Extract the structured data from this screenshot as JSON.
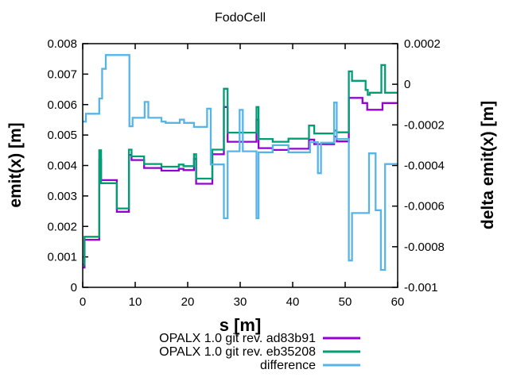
{
  "window": {
    "background": "#ffffff"
  },
  "chart_data": {
    "type": "line",
    "line_mode": "steps",
    "title": "FodoCell",
    "xlabel": "s [m]",
    "ylabel_left": "emit(x) [m]",
    "ylabel_right": "delta emit(x) [m]",
    "grid": false,
    "legend_position": "below-plot-right",
    "x_range": [
      0,
      60
    ],
    "x_ticks": [
      0,
      10,
      20,
      30,
      40,
      50,
      60
    ],
    "x_tick_labels": [
      "0",
      "10",
      "20",
      "30",
      "40",
      "50",
      "60"
    ],
    "y_left_range": [
      0,
      0.008
    ],
    "y_left_ticks": [
      0,
      0.001,
      0.002,
      0.003,
      0.004,
      0.005,
      0.006,
      0.007,
      0.008
    ],
    "y_left_tick_labels": [
      "0",
      "0.001",
      "0.002",
      "0.003",
      "0.004",
      "0.005",
      "0.006",
      "0.007",
      "0.008"
    ],
    "y_right_range": [
      -0.001,
      0.0002
    ],
    "y_right_ticks": [
      0.0002,
      0,
      -0.0002,
      -0.0004,
      -0.0006,
      -0.0008,
      -0.001
    ],
    "y_right_tick_labels": [
      "0.0002",
      "0",
      "-0.0002",
      "-0.0004",
      "-0.0006",
      "-0.0008",
      "-0.001"
    ],
    "series": [
      {
        "name": "OPALX 1.0 git rev. ad83b91",
        "color": "#9400d3",
        "axis": "left",
        "points": [
          [
            0,
            0.00065
          ],
          [
            0.35,
            0.00156
          ],
          [
            3.15,
            0.0042
          ],
          [
            3.5,
            0.00352
          ],
          [
            6.5,
            0.00248
          ],
          [
            8.8,
            0.00435
          ],
          [
            9.3,
            0.00418
          ],
          [
            11.7,
            0.00392
          ],
          [
            15.0,
            0.00383
          ],
          [
            18.3,
            0.00389
          ],
          [
            19.2,
            0.00385
          ],
          [
            21.2,
            0.00422
          ],
          [
            21.6,
            0.0034
          ],
          [
            24.7,
            0.00437
          ],
          [
            26.9,
            0.00592
          ],
          [
            27.6,
            0.00478
          ],
          [
            33.1,
            0.0055
          ],
          [
            33.5,
            0.00457
          ],
          [
            36.2,
            0.00451
          ],
          [
            39.2,
            0.00455
          ],
          [
            43.1,
            0.00485
          ],
          [
            44.1,
            0.0047
          ],
          [
            47.9,
            0.00495
          ],
          [
            48.4,
            0.00479
          ],
          [
            50.7,
            0.00622
          ],
          [
            53.3,
            0.00605
          ],
          [
            54.2,
            0.00583
          ],
          [
            57.1,
            0.00605
          ]
        ]
      },
      {
        "name": "OPALX 1.0 git rev. eb35208",
        "color": "#009e73",
        "axis": "left",
        "points": [
          [
            0,
            0.00075
          ],
          [
            0.35,
            0.00166
          ],
          [
            3.15,
            0.0045
          ],
          [
            3.5,
            0.00342
          ],
          [
            6.5,
            0.00259
          ],
          [
            8.8,
            0.00452
          ],
          [
            9.3,
            0.0043
          ],
          [
            11.7,
            0.00405
          ],
          [
            15.0,
            0.00396
          ],
          [
            18.3,
            0.00403
          ],
          [
            19.2,
            0.00398
          ],
          [
            21.2,
            0.00437
          ],
          [
            21.6,
            0.00357
          ],
          [
            24.7,
            0.00452
          ],
          [
            26.9,
            0.00652
          ],
          [
            27.6,
            0.00508
          ],
          [
            33.1,
            0.00592
          ],
          [
            33.5,
            0.00487
          ],
          [
            36.2,
            0.00478
          ],
          [
            39.2,
            0.00488
          ],
          [
            43.1,
            0.00531
          ],
          [
            44.1,
            0.00505
          ],
          [
            47.9,
            0.00515
          ],
          [
            48.4,
            0.00509
          ],
          [
            50.7,
            0.00709
          ],
          [
            51.3,
            0.00678
          ],
          [
            53.9,
            0.00648
          ],
          [
            54.3,
            0.00632
          ],
          [
            54.7,
            0.00639
          ],
          [
            56.9,
            0.0073
          ],
          [
            57.6,
            0.00639
          ]
        ]
      },
      {
        "name": "difference",
        "color": "#56b4e9",
        "axis": "right",
        "points": [
          [
            0,
            -0.000184
          ],
          [
            0.6,
            -0.000145
          ],
          [
            3.15,
            -7e-05
          ],
          [
            3.7,
            7.6e-05
          ],
          [
            4.4,
            0.000144
          ],
          [
            8.9,
            -0.000207
          ],
          [
            9.5,
            -0.000165
          ],
          [
            11.8,
            -8.7e-05
          ],
          [
            12.5,
            -0.000165
          ],
          [
            15.0,
            -0.000184
          ],
          [
            15.8,
            -0.00019
          ],
          [
            18.5,
            -0.000174
          ],
          [
            19.3,
            -0.00019
          ],
          [
            21.2,
            -0.00021
          ],
          [
            23.7,
            -0.00012
          ],
          [
            24.4,
            -0.000395
          ],
          [
            26.9,
            -0.00066
          ],
          [
            27.6,
            -0.00033
          ],
          [
            29.9,
            -0.000126
          ],
          [
            30.5,
            -0.00033
          ],
          [
            33.1,
            -0.00066
          ],
          [
            33.5,
            -0.000335
          ],
          [
            36.2,
            -0.0003
          ],
          [
            39.2,
            -0.000335
          ],
          [
            43.3,
            -0.000285
          ],
          [
            44.8,
            -0.000438
          ],
          [
            45.4,
            -0.000288
          ],
          [
            47.9,
            -9e-05
          ],
          [
            48.4,
            -0.00027
          ],
          [
            50.7,
            -0.000868
          ],
          [
            51.3,
            -0.000634
          ],
          [
            54.55,
            -0.00034
          ],
          [
            55.8,
            -0.00062
          ],
          [
            56.8,
            -0.000914
          ],
          [
            57.6,
            -0.000393
          ]
        ]
      }
    ]
  }
}
